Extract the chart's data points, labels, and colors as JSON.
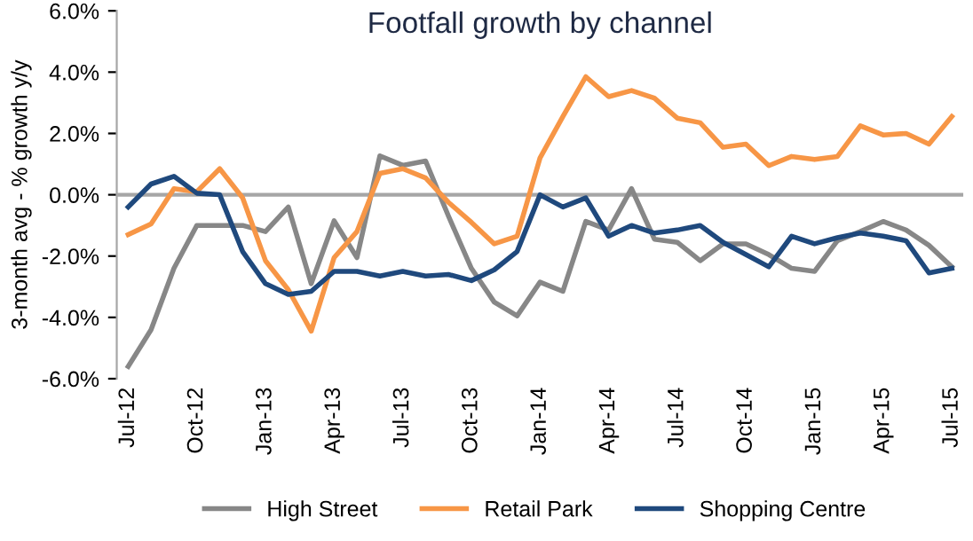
{
  "chart_data": {
    "type": "line",
    "title": "Footfall growth by channel",
    "ylabel": "3-month avg - % growth y/y",
    "categories": [
      "Jul-12",
      null,
      null,
      "Oct-12",
      null,
      null,
      "Jan-13",
      null,
      null,
      "Apr-13",
      null,
      null,
      "Jul-13",
      null,
      null,
      "Oct-13",
      null,
      null,
      "Jan-14",
      null,
      null,
      "Apr-14",
      null,
      null,
      "Jul-14",
      null,
      null,
      "Oct-14",
      null,
      null,
      "Jan-15",
      null,
      null,
      "Apr-15",
      null,
      null,
      "Jul-15"
    ],
    "series": [
      {
        "name": "High Street",
        "color": "#878787",
        "values": [
          -5.6,
          -4.4,
          -2.4,
          -1.0,
          -1.0,
          -1.0,
          -1.2,
          -0.4,
          -2.9,
          -0.85,
          -2.05,
          1.27,
          0.96,
          1.1,
          -0.7,
          -2.4,
          -3.5,
          -3.95,
          -2.85,
          -3.15,
          -0.87,
          -1.15,
          0.2,
          -1.45,
          -1.55,
          -2.15,
          -1.6,
          -1.6,
          -1.95,
          -2.4,
          -2.5,
          -1.5,
          -1.2,
          -0.87,
          -1.15,
          -1.65,
          -2.35
        ]
      },
      {
        "name": "Retail Park",
        "color": "#f79646",
        "values": [
          -1.3,
          -0.95,
          0.2,
          0.1,
          0.85,
          -0.1,
          -2.15,
          -3.1,
          -4.45,
          -2.05,
          -1.2,
          0.7,
          0.85,
          0.55,
          -0.25,
          -0.9,
          -1.6,
          -1.35,
          1.2,
          2.55,
          3.85,
          3.2,
          3.4,
          3.15,
          2.5,
          2.35,
          1.55,
          1.65,
          0.95,
          1.25,
          1.15,
          1.25,
          2.25,
          1.95,
          2.0,
          1.65,
          2.55
        ]
      },
      {
        "name": "Shopping Centre",
        "color": "#1f497d",
        "values": [
          -0.4,
          0.35,
          0.6,
          0.05,
          0.0,
          -1.85,
          -2.9,
          -3.25,
          -3.15,
          -2.5,
          -2.5,
          -2.65,
          -2.5,
          -2.65,
          -2.6,
          -2.8,
          -2.45,
          -1.85,
          0.0,
          -0.4,
          -0.1,
          -1.35,
          -1.0,
          -1.25,
          -1.15,
          -1.0,
          -1.55,
          -1.95,
          -2.35,
          -1.35,
          -1.6,
          -1.4,
          -1.25,
          -1.35,
          -1.5,
          -2.55,
          -2.4
        ]
      }
    ],
    "ylim": [
      -6,
      6
    ],
    "yticks": [
      {
        "value": -6,
        "label": "-6.0%"
      },
      {
        "value": -4,
        "label": "-4.0%"
      },
      {
        "value": -2,
        "label": "-2.0%"
      },
      {
        "value": 0,
        "label": "0.0%"
      },
      {
        "value": 2,
        "label": "2.0%"
      },
      {
        "value": 4,
        "label": "4.0%"
      },
      {
        "value": 6,
        "label": "6.0%"
      }
    ],
    "ref_lines": [
      {
        "axis": "y",
        "value": 0,
        "color": "#a6a6a6"
      }
    ],
    "legend": "bottom",
    "grid": false,
    "marker": "none",
    "line_style": "solid"
  }
}
